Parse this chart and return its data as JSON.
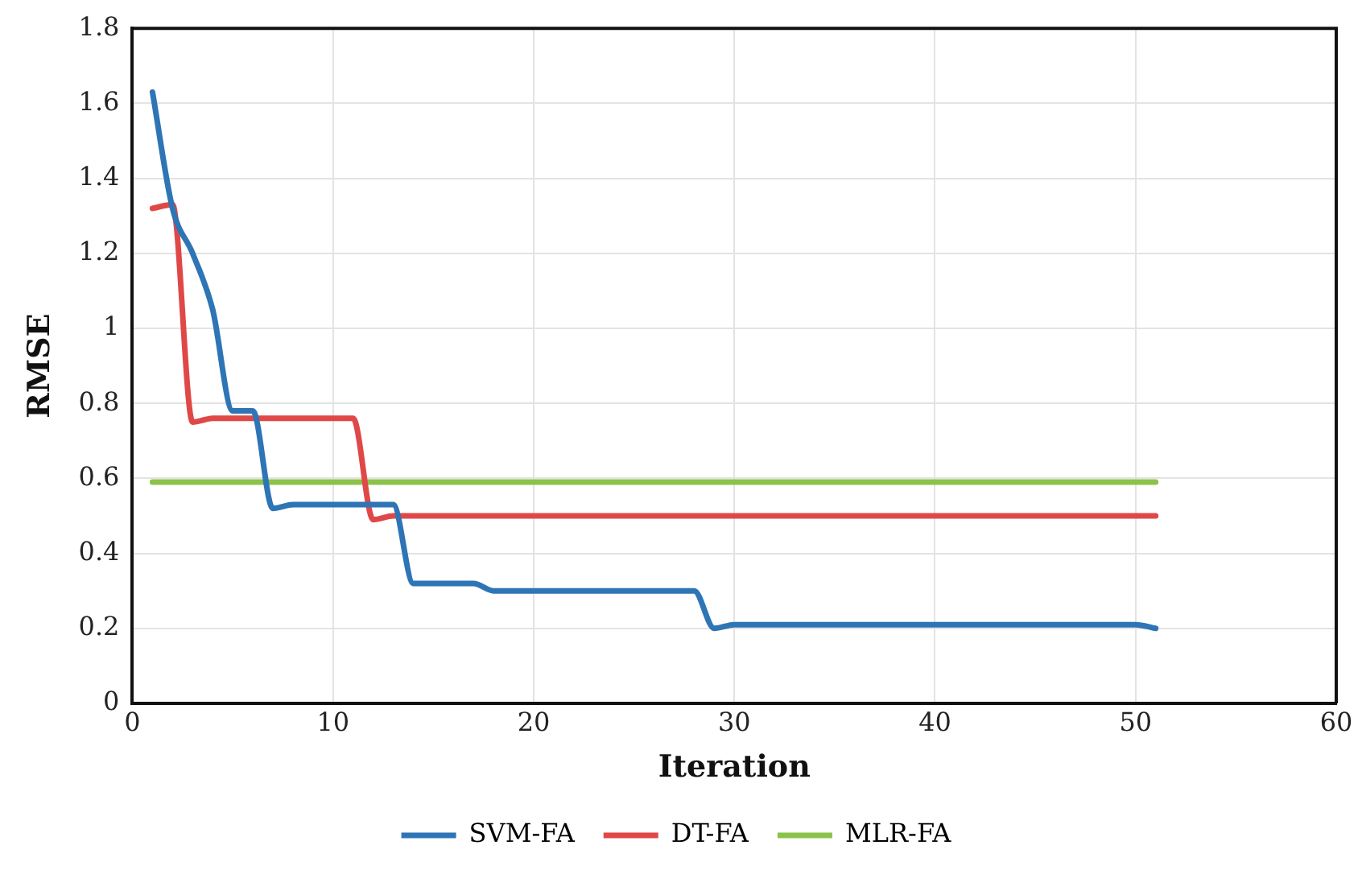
{
  "chart_data": {
    "type": "line",
    "xlabel": "Iteration",
    "ylabel": "RMSE",
    "x": [
      1,
      2,
      3,
      4,
      5,
      6,
      7,
      8,
      9,
      10,
      11,
      12,
      13,
      14,
      15,
      16,
      17,
      18,
      19,
      20,
      21,
      22,
      23,
      24,
      25,
      26,
      27,
      28,
      29,
      30,
      31,
      32,
      33,
      34,
      35,
      36,
      37,
      38,
      39,
      40,
      41,
      42,
      43,
      44,
      45,
      46,
      47,
      48,
      49,
      50,
      51
    ],
    "series": [
      {
        "name": "SVM-FA",
        "color": "#2e75b6",
        "values": [
          1.63,
          1.32,
          1.2,
          1.05,
          0.78,
          0.78,
          0.52,
          0.53,
          0.53,
          0.53,
          0.53,
          0.53,
          0.53,
          0.32,
          0.32,
          0.32,
          0.32,
          0.3,
          0.3,
          0.3,
          0.3,
          0.3,
          0.3,
          0.3,
          0.3,
          0.3,
          0.3,
          0.3,
          0.2,
          0.21,
          0.21,
          0.21,
          0.21,
          0.21,
          0.21,
          0.21,
          0.21,
          0.21,
          0.21,
          0.21,
          0.21,
          0.21,
          0.21,
          0.21,
          0.21,
          0.21,
          0.21,
          0.21,
          0.21,
          0.21,
          0.2
        ]
      },
      {
        "name": "DT-FA",
        "color": "#e04848",
        "values": [
          1.32,
          1.33,
          0.75,
          0.76,
          0.76,
          0.76,
          0.76,
          0.76,
          0.76,
          0.76,
          0.76,
          0.49,
          0.5,
          0.5,
          0.5,
          0.5,
          0.5,
          0.5,
          0.5,
          0.5,
          0.5,
          0.5,
          0.5,
          0.5,
          0.5,
          0.5,
          0.5,
          0.5,
          0.5,
          0.5,
          0.5,
          0.5,
          0.5,
          0.5,
          0.5,
          0.5,
          0.5,
          0.5,
          0.5,
          0.5,
          0.5,
          0.5,
          0.5,
          0.5,
          0.5,
          0.5,
          0.5,
          0.5,
          0.5,
          0.5,
          0.5
        ]
      },
      {
        "name": "MLR-FA",
        "color": "#8bc34a",
        "values": [
          0.59,
          0.59,
          0.59,
          0.59,
          0.59,
          0.59,
          0.59,
          0.59,
          0.59,
          0.59,
          0.59,
          0.59,
          0.59,
          0.59,
          0.59,
          0.59,
          0.59,
          0.59,
          0.59,
          0.59,
          0.59,
          0.59,
          0.59,
          0.59,
          0.59,
          0.59,
          0.59,
          0.59,
          0.59,
          0.59,
          0.59,
          0.59,
          0.59,
          0.59,
          0.59,
          0.59,
          0.59,
          0.59,
          0.59,
          0.59,
          0.59,
          0.59,
          0.59,
          0.59,
          0.59,
          0.59,
          0.59,
          0.59,
          0.59,
          0.59,
          0.59
        ]
      }
    ],
    "xlim": [
      0,
      60
    ],
    "xticks": [
      0,
      10,
      20,
      30,
      40,
      50,
      60
    ],
    "ylim": [
      0,
      1.8
    ],
    "yticks": [
      0,
      0.2,
      0.4,
      0.6,
      0.8,
      1,
      1.2,
      1.4,
      1.6,
      1.8
    ],
    "grid": true,
    "legend": "bottom",
    "marker": "none",
    "line_style": "solid"
  }
}
